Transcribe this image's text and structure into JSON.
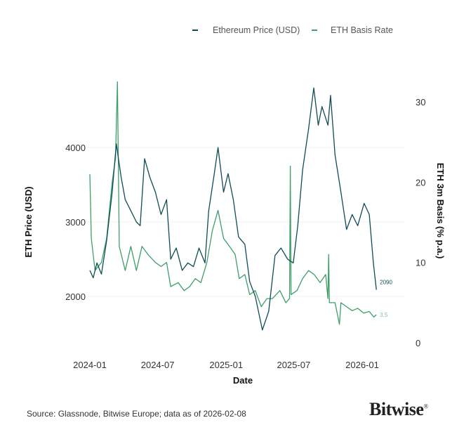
{
  "chart_data": {
    "type": "line",
    "xlabel": "Date",
    "ylabel_left": "ETH Price (USD)",
    "ylabel_right": "ETH 3m Basis (% p.a.)",
    "x_ticks": [
      "2024-01",
      "2024-07",
      "2025-01",
      "2025-07",
      "2026-01"
    ],
    "y_left_ticks": [
      2000,
      3000,
      4000
    ],
    "y_right_ticks": [
      0,
      10,
      20,
      30
    ],
    "y_left_range": [
      1350,
      4850
    ],
    "y_right_range": [
      0,
      32.5
    ],
    "grid": "horizontal",
    "legend_position": "top-right",
    "series": [
      {
        "name": "Ethereum Price (USD)",
        "axis": "left",
        "color": "#0f4c55",
        "end_label": "2090",
        "points": [
          [
            "2024-01-01",
            2350
          ],
          [
            "2024-01-10",
            2250
          ],
          [
            "2024-01-20",
            2450
          ],
          [
            "2024-02-01",
            2300
          ],
          [
            "2024-02-15",
            2750
          ],
          [
            "2024-03-01",
            3400
          ],
          [
            "2024-03-12",
            4050
          ],
          [
            "2024-03-25",
            3600
          ],
          [
            "2024-04-05",
            3300
          ],
          [
            "2024-04-20",
            3150
          ],
          [
            "2024-05-05",
            3000
          ],
          [
            "2024-05-15",
            2950
          ],
          [
            "2024-05-27",
            3850
          ],
          [
            "2024-06-10",
            3600
          ],
          [
            "2024-06-25",
            3400
          ],
          [
            "2024-07-10",
            3100
          ],
          [
            "2024-07-25",
            3300
          ],
          [
            "2024-08-05",
            2500
          ],
          [
            "2024-08-20",
            2650
          ],
          [
            "2024-09-05",
            2350
          ],
          [
            "2024-09-20",
            2450
          ],
          [
            "2024-10-05",
            2400
          ],
          [
            "2024-10-20",
            2650
          ],
          [
            "2024-11-05",
            2450
          ],
          [
            "2024-11-15",
            3150
          ],
          [
            "2024-11-30",
            3650
          ],
          [
            "2024-12-10",
            4000
          ],
          [
            "2024-12-25",
            3400
          ],
          [
            "2025-01-06",
            3650
          ],
          [
            "2025-01-20",
            3300
          ],
          [
            "2025-02-03",
            2800
          ],
          [
            "2025-02-20",
            2700
          ],
          [
            "2025-03-05",
            2200
          ],
          [
            "2025-03-20",
            2000
          ],
          [
            "2025-04-08",
            1550
          ],
          [
            "2025-04-25",
            1800
          ],
          [
            "2025-05-12",
            2550
          ],
          [
            "2025-05-28",
            2650
          ],
          [
            "2025-06-15",
            2500
          ],
          [
            "2025-06-30",
            2450
          ],
          [
            "2025-07-12",
            2950
          ],
          [
            "2025-07-25",
            3700
          ],
          [
            "2025-08-10",
            4250
          ],
          [
            "2025-08-24",
            4800
          ],
          [
            "2025-09-05",
            4300
          ],
          [
            "2025-09-15",
            4550
          ],
          [
            "2025-10-01",
            4300
          ],
          [
            "2025-10-08",
            4700
          ],
          [
            "2025-10-20",
            3900
          ],
          [
            "2025-11-05",
            3400
          ],
          [
            "2025-11-20",
            2900
          ],
          [
            "2025-12-05",
            3100
          ],
          [
            "2025-12-20",
            2950
          ],
          [
            "2026-01-06",
            3250
          ],
          [
            "2026-01-20",
            3100
          ],
          [
            "2026-01-31",
            2450
          ],
          [
            "2026-02-08",
            2090
          ]
        ]
      },
      {
        "name": "ETH Basis Rate",
        "axis": "right",
        "color": "#3f9e6a",
        "end_label": "3.5",
        "points": [
          [
            "2024-01-01",
            21
          ],
          [
            "2024-01-05",
            13
          ],
          [
            "2024-01-15",
            9
          ],
          [
            "2024-02-01",
            10
          ],
          [
            "2024-02-15",
            13
          ],
          [
            "2024-03-01",
            20
          ],
          [
            "2024-03-10",
            23
          ],
          [
            "2024-03-15",
            32.5
          ],
          [
            "2024-03-20",
            12
          ],
          [
            "2024-04-05",
            9
          ],
          [
            "2024-04-20",
            12
          ],
          [
            "2024-05-05",
            9
          ],
          [
            "2024-05-20",
            12
          ],
          [
            "2024-06-05",
            11
          ],
          [
            "2024-06-25",
            10
          ],
          [
            "2024-07-10",
            9.5
          ],
          [
            "2024-07-25",
            10
          ],
          [
            "2024-08-05",
            7
          ],
          [
            "2024-08-25",
            7.5
          ],
          [
            "2024-09-10",
            6.5
          ],
          [
            "2024-09-25",
            7
          ],
          [
            "2024-10-10",
            8
          ],
          [
            "2024-10-25",
            7.5
          ],
          [
            "2024-11-10",
            10
          ],
          [
            "2024-11-25",
            14
          ],
          [
            "2024-12-10",
            16.5
          ],
          [
            "2024-12-25",
            13
          ],
          [
            "2025-01-10",
            12
          ],
          [
            "2025-01-25",
            11
          ],
          [
            "2025-02-05",
            8
          ],
          [
            "2025-02-20",
            8.5
          ],
          [
            "2025-03-05",
            6
          ],
          [
            "2025-03-20",
            6.5
          ],
          [
            "2025-04-05",
            4.5
          ],
          [
            "2025-04-20",
            5.5
          ],
          [
            "2025-05-05",
            5.5
          ],
          [
            "2025-05-25",
            6.5
          ],
          [
            "2025-06-10",
            5
          ],
          [
            "2025-06-20",
            5.5
          ],
          [
            "2025-06-22",
            22
          ],
          [
            "2025-06-24",
            6
          ],
          [
            "2025-07-10",
            6.5
          ],
          [
            "2025-07-25",
            8
          ],
          [
            "2025-08-10",
            9
          ],
          [
            "2025-08-25",
            8.5
          ],
          [
            "2025-09-10",
            7.5
          ],
          [
            "2025-09-25",
            8.5
          ],
          [
            "2025-10-01",
            5.5
          ],
          [
            "2025-10-03",
            11
          ],
          [
            "2025-10-05",
            5
          ],
          [
            "2025-10-20",
            5
          ],
          [
            "2025-11-01",
            2.3
          ],
          [
            "2025-11-05",
            5
          ],
          [
            "2025-11-20",
            4.5
          ],
          [
            "2025-12-05",
            4
          ],
          [
            "2025-12-20",
            4.3
          ],
          [
            "2026-01-05",
            3.7
          ],
          [
            "2026-01-20",
            3.9
          ],
          [
            "2026-02-01",
            3.2
          ],
          [
            "2026-02-08",
            3.5
          ]
        ]
      }
    ]
  },
  "source": "Source: Glassnode, Bitwise Europe; data as of 2026-02-08",
  "logo": "Bitwise"
}
